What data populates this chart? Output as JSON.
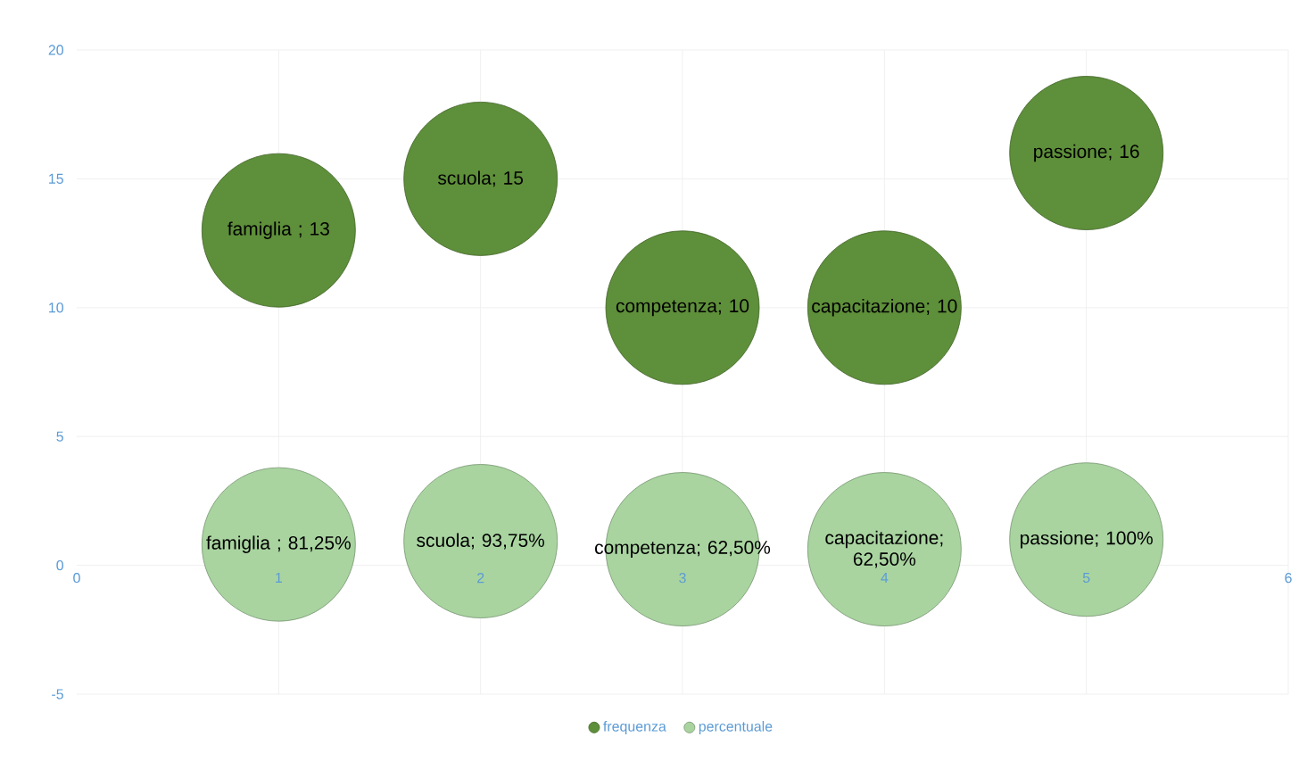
{
  "chart_data": {
    "type": "bubble",
    "x": [
      1,
      2,
      3,
      4,
      5
    ],
    "series": [
      {
        "name": "frequenza",
        "color": "#5e8f3a",
        "values": [
          13,
          15,
          10,
          10,
          16
        ],
        "sizes": [
          1,
          1,
          1,
          1,
          1
        ],
        "value_labels": [
          "famiglia ; 13",
          "scuola; 15",
          "competenza; 10",
          "capacitazione; 10",
          "passione; 16"
        ]
      },
      {
        "name": "percentuale",
        "color": "#a9d4a0",
        "values": [
          0.8125,
          0.9375,
          0.625,
          0.625,
          1
        ],
        "sizes": [
          1,
          1,
          1,
          1,
          1
        ],
        "value_labels": [
          "famiglia ; 81,25%",
          "scuola; 93,75%",
          "competenza; 62,50%",
          "capacitazione; 62,50%",
          "passione; 100%"
        ]
      }
    ],
    "xlim": [
      0,
      6
    ],
    "xticks": [
      0,
      1,
      2,
      3,
      4,
      5,
      6
    ],
    "ylim": [
      -5,
      20
    ],
    "yticks": [
      -5,
      0,
      5,
      10,
      15,
      20
    ],
    "grid": true,
    "legend": "bottom"
  }
}
